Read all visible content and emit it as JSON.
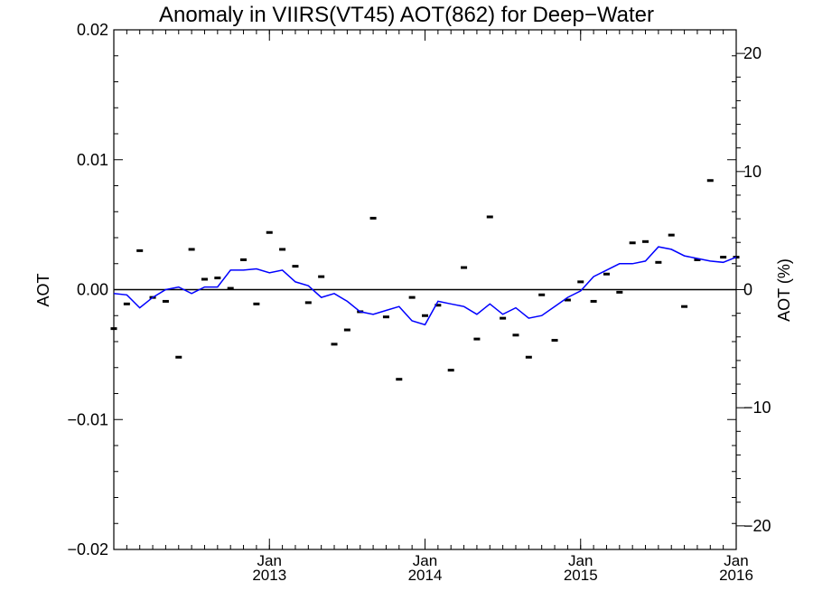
{
  "chart_data": {
    "type": "scatter",
    "title": "Anomaly in VIIRS(VT45) AOT(862) for Deep−Water",
    "ylabel": "AOT",
    "ylabel_right": "AOT (%)",
    "ylim": [
      -0.02,
      0.02
    ],
    "ylim_right": [
      -22,
      22
    ],
    "y_ticks": [
      -0.02,
      -0.01,
      0.0,
      0.01,
      0.02
    ],
    "y_tick_labels": [
      "−0.02",
      "−0.01",
      "0.00",
      "0.01",
      "0.02"
    ],
    "y_right_ticks": [
      -20,
      -10,
      0,
      10,
      20
    ],
    "y_right_tick_labels": [
      "−20",
      "−10",
      "0",
      "10",
      "20"
    ],
    "xlim": [
      "2012-01",
      "2016-01"
    ],
    "x_ticks": [
      {
        "month": "2013-01",
        "line1": "Jan",
        "line2": "2013"
      },
      {
        "month": "2014-01",
        "line1": "Jan",
        "line2": "2014"
      },
      {
        "month": "2015-01",
        "line1": "Jan",
        "line2": "2015"
      },
      {
        "month": "2016-01",
        "line1": "Jan",
        "line2": "2016"
      }
    ],
    "colors": {
      "line": "#0000ff",
      "points": "#000000",
      "axis": "#000000"
    },
    "series": [
      {
        "type": "scatter",
        "marker": "dash",
        "x": [
          "2012-01",
          "2012-02",
          "2012-03",
          "2012-04",
          "2012-05",
          "2012-06",
          "2012-07",
          "2012-08",
          "2012-09",
          "2012-10",
          "2012-11",
          "2012-12",
          "2013-01",
          "2013-02",
          "2013-03",
          "2013-04",
          "2013-05",
          "2013-06",
          "2013-07",
          "2013-08",
          "2013-09",
          "2013-10",
          "2013-11",
          "2013-12",
          "2014-01",
          "2014-02",
          "2014-03",
          "2014-04",
          "2014-05",
          "2014-06",
          "2014-07",
          "2014-08",
          "2014-09",
          "2014-10",
          "2014-11",
          "2014-12",
          "2015-01",
          "2015-02",
          "2015-03",
          "2015-04",
          "2015-05",
          "2015-06",
          "2015-07",
          "2015-08",
          "2015-09",
          "2015-10",
          "2015-11",
          "2015-12",
          "2016-01"
        ],
        "y": [
          -0.003,
          -0.0011,
          0.003,
          -0.0006,
          -0.0009,
          -0.0052,
          0.0031,
          0.0008,
          0.0009,
          0.0001,
          0.0023,
          -0.0011,
          0.0044,
          0.0031,
          0.0018,
          -0.001,
          0.001,
          -0.0042,
          -0.0031,
          -0.0017,
          0.0055,
          -0.0021,
          -0.0069,
          -0.0006,
          -0.002,
          -0.0012,
          -0.0062,
          0.0017,
          -0.0038,
          0.0056,
          -0.0022,
          -0.0035,
          -0.0052,
          -0.0004,
          -0.0039,
          -0.0008,
          0.0006,
          -0.0009,
          0.0012,
          -0.0002,
          0.0036,
          0.0037,
          0.0021,
          0.0042,
          -0.0013,
          0.0023,
          0.0084,
          0.0025,
          0.0025
        ]
      },
      {
        "type": "line",
        "x": [
          "2012-01",
          "2012-02",
          "2012-03",
          "2012-04",
          "2012-05",
          "2012-06",
          "2012-07",
          "2012-08",
          "2012-09",
          "2012-10",
          "2012-11",
          "2012-12",
          "2013-01",
          "2013-02",
          "2013-03",
          "2013-04",
          "2013-05",
          "2013-06",
          "2013-07",
          "2013-08",
          "2013-09",
          "2013-10",
          "2013-11",
          "2013-12",
          "2014-01",
          "2014-02",
          "2014-03",
          "2014-04",
          "2014-05",
          "2014-06",
          "2014-07",
          "2014-08",
          "2014-09",
          "2014-10",
          "2014-11",
          "2014-12",
          "2015-01",
          "2015-02",
          "2015-03",
          "2015-04",
          "2015-05",
          "2015-06",
          "2015-07",
          "2015-08",
          "2015-09",
          "2015-10",
          "2015-11",
          "2015-12",
          "2016-01"
        ],
        "y": [
          -0.0003,
          -0.0004,
          -0.0014,
          -0.0006,
          0.0,
          0.0002,
          -0.0003,
          0.0002,
          0.0002,
          0.0015,
          0.0015,
          0.0016,
          0.0013,
          0.0015,
          0.0006,
          0.0003,
          -0.0006,
          -0.0003,
          -0.0009,
          -0.0017,
          -0.0019,
          -0.0016,
          -0.0013,
          -0.0024,
          -0.0027,
          -0.0009,
          -0.0011,
          -0.0013,
          -0.0019,
          -0.0011,
          -0.0019,
          -0.0014,
          -0.0022,
          -0.002,
          -0.0013,
          -0.0006,
          -0.0001,
          0.001,
          0.0015,
          0.002,
          0.002,
          0.0022,
          0.0033,
          0.0031,
          0.0026,
          0.0024,
          0.0022,
          0.0021,
          0.0025
        ]
      }
    ]
  }
}
